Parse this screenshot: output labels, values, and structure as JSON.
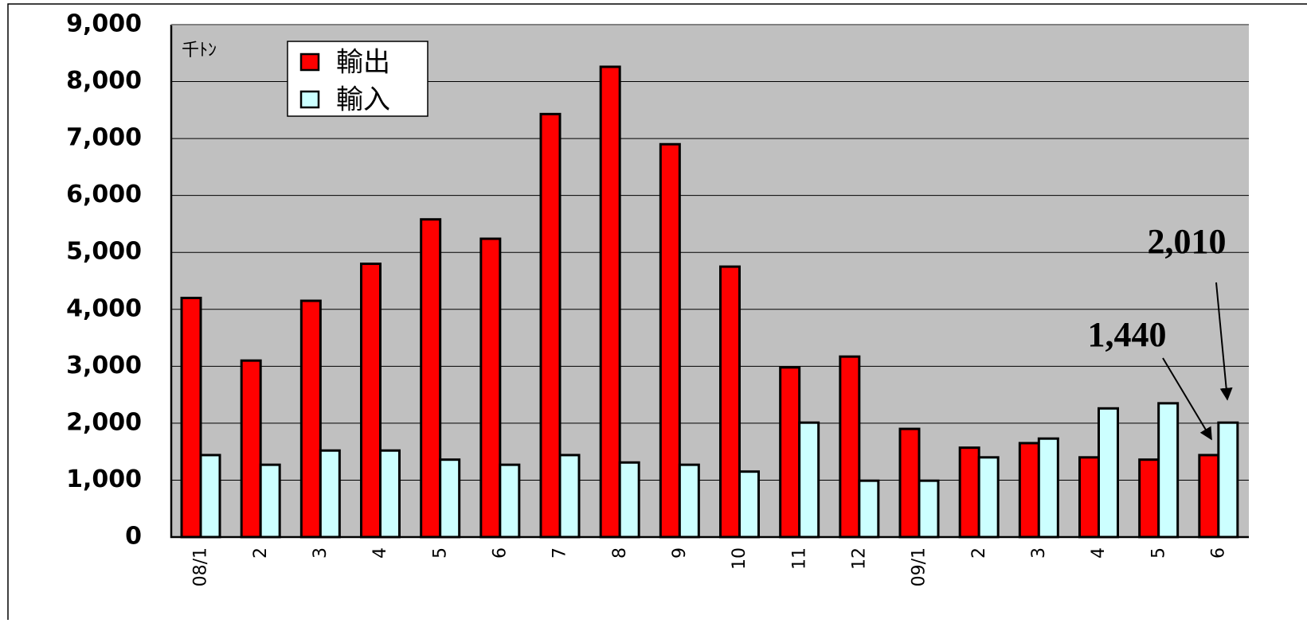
{
  "chart_data": {
    "type": "bar",
    "y_label": "千ﾄﾝ",
    "categories": [
      "08/1",
      "2",
      "3",
      "4",
      "5",
      "6",
      "7",
      "8",
      "9",
      "10",
      "11",
      "12",
      "09/1",
      "2",
      "3",
      "4",
      "5",
      "6"
    ],
    "series": [
      {
        "name": "輸出",
        "color": "#ff0000",
        "values": [
          4200,
          3100,
          4150,
          4800,
          5580,
          5240,
          7430,
          8260,
          6900,
          4750,
          2980,
          3170,
          1900,
          1570,
          1650,
          1400,
          1360,
          1440
        ]
      },
      {
        "name": "輸入",
        "color": "#ccffff",
        "values": [
          1440,
          1270,
          1520,
          1520,
          1360,
          1270,
          1440,
          1310,
          1270,
          1150,
          2010,
          990,
          990,
          1400,
          1730,
          2260,
          2350,
          2010
        ]
      }
    ],
    "ylim": [
      0,
      9000
    ],
    "yticks": [
      0,
      {
        "value": 1000,
        "label": "1,000"
      },
      {
        "value": 2000,
        "label": "2,000"
      },
      {
        "value": 3000,
        "label": "3,000"
      },
      {
        "value": 4000,
        "label": "4,000"
      },
      {
        "value": 5000,
        "label": "5,000"
      },
      {
        "value": 6000,
        "label": "6,000"
      },
      {
        "value": 7000,
        "label": "7,000"
      },
      {
        "value": 8000,
        "label": "8,000"
      },
      {
        "value": 9000,
        "label": "9,000"
      }
    ],
    "grid": true,
    "legend": "upper left",
    "plot_background": "#c0c0c0",
    "annotations": [
      {
        "text": "2,010"
      },
      {
        "text": "1,440"
      }
    ]
  }
}
